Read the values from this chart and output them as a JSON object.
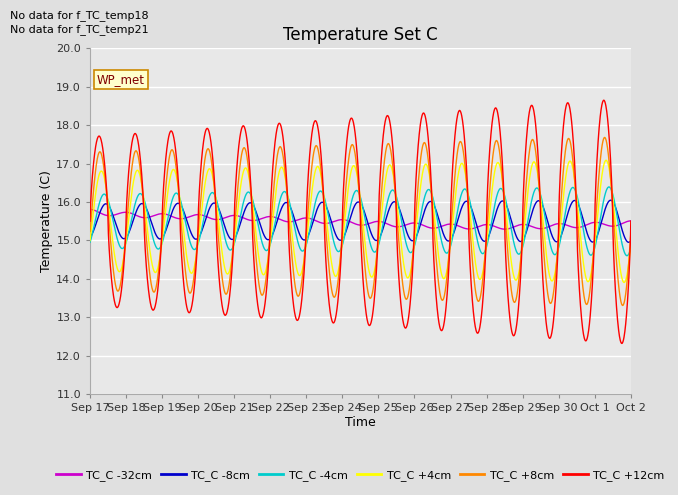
{
  "title": "Temperature Set C",
  "xlabel": "Time",
  "ylabel": "Temperature (C)",
  "ylim": [
    11.0,
    20.0
  ],
  "yticks": [
    11.0,
    12.0,
    13.0,
    14.0,
    15.0,
    16.0,
    17.0,
    18.0,
    19.0,
    20.0
  ],
  "fig_bg": "#e0e0e0",
  "plot_bg": "#e8e8e8",
  "grid_color": "#ffffff",
  "annotations": [
    "No data for f_TC_temp18",
    "No data for f_TC_temp21"
  ],
  "wp_met_label": "WP_met",
  "legend_entries": [
    {
      "label": "TC_C -32cm",
      "color": "#cc00cc"
    },
    {
      "label": "TC_C -8cm",
      "color": "#0000cc"
    },
    {
      "label": "TC_C -4cm",
      "color": "#00cccc"
    },
    {
      "label": "TC_C +4cm",
      "color": "#ffff00"
    },
    {
      "label": "TC_C +8cm",
      "color": "#ff8800"
    },
    {
      "label": "TC_C +12cm",
      "color": "#ff0000"
    }
  ],
  "x_tick_labels": [
    "Sep 17",
    "Sep 18",
    "Sep 19",
    "Sep 20",
    "Sep 21",
    "Sep 22",
    "Sep 23",
    "Sep 24",
    "Sep 25",
    "Sep 26",
    "Sep 27",
    "Sep 28",
    "Sep 29",
    "Sep 30",
    "Oct 1",
    "Oct 2"
  ],
  "title_fontsize": 12,
  "axis_label_fontsize": 9,
  "tick_fontsize": 8,
  "lw_thin": 1.0,
  "lw_thick": 1.5,
  "n_days": 15,
  "base_temp": 15.5,
  "period": 1.0
}
